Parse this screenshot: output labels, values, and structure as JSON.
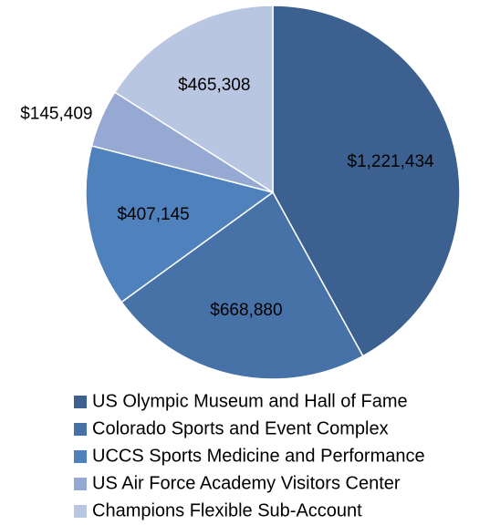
{
  "chart_data": {
    "type": "pie",
    "categories": [
      "US Olympic Museum and Hall of Fame",
      "Colorado Sports and Event Complex",
      "UCCS Sports Medicine and Performance",
      "US Air Force Academy Visitors Center",
      "Champions Flexible Sub-Account"
    ],
    "values": [
      1221434,
      668880,
      407145,
      145409,
      465308
    ],
    "value_labels": [
      "$1,221,434",
      "$668,880",
      "$407,145",
      "$145,409",
      "$465,308"
    ],
    "colors": [
      "#3c6190",
      "#4672a8",
      "#4f81bd",
      "#95a9d2",
      "#b9c6e1"
    ]
  }
}
